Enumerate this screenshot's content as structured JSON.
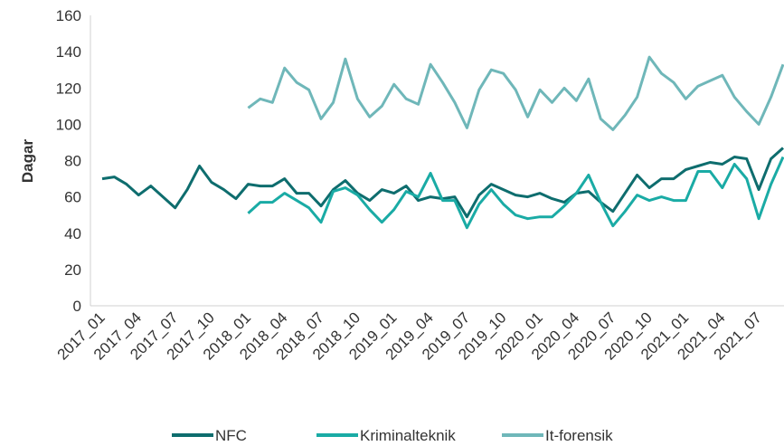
{
  "chart_data": {
    "type": "line",
    "y_label": "Dagar",
    "categories": [
      "2017_01",
      null,
      null,
      "2017_04",
      null,
      null,
      "2017_07",
      null,
      null,
      "2017_10",
      null,
      null,
      "2018_01",
      null,
      null,
      "2018_04",
      null,
      null,
      "2018_07",
      null,
      null,
      "2018_10",
      null,
      null,
      "2019_01",
      null,
      null,
      "2019_04",
      null,
      null,
      "2019_07",
      null,
      null,
      "2019_10",
      null,
      null,
      "2020_01",
      null,
      null,
      "2020_04",
      null,
      null,
      "2020_07",
      null,
      null,
      "2020_10",
      null,
      null,
      "2021_01",
      null,
      null,
      "2021_04",
      null,
      null,
      "2021_07",
      null,
      null
    ],
    "series": [
      {
        "name": "NFC",
        "color": "#0e6d6e",
        "values": [
          70,
          71,
          67,
          61,
          66,
          60,
          54,
          64,
          77,
          68,
          64,
          59,
          67,
          66,
          66,
          70,
          62,
          62,
          55,
          64,
          69,
          62,
          58,
          64,
          62,
          66,
          58,
          60,
          59,
          60,
          49,
          61,
          67,
          64,
          61,
          60,
          62,
          59,
          57,
          62,
          63,
          57,
          52,
          62,
          72,
          65,
          70,
          70,
          75,
          77,
          79,
          78,
          82,
          81,
          64,
          81,
          87
        ]
      },
      {
        "name": "Kriminalteknik",
        "color": "#1aaba5",
        "values": [
          null,
          null,
          null,
          null,
          null,
          null,
          null,
          null,
          null,
          null,
          null,
          null,
          51,
          57,
          57,
          62,
          58,
          54,
          46,
          63,
          65,
          61,
          53,
          46,
          53,
          63,
          60,
          73,
          58,
          58,
          43,
          56,
          64,
          56,
          50,
          48,
          49,
          49,
          55,
          62,
          72,
          57,
          44,
          52,
          61,
          58,
          60,
          58,
          58,
          74,
          74,
          65,
          78,
          70,
          48,
          67,
          82
        ]
      },
      {
        "name": "It-forensik",
        "color": "#6fb7b9",
        "values": [
          null,
          null,
          null,
          null,
          null,
          null,
          null,
          null,
          null,
          null,
          null,
          null,
          109,
          114,
          112,
          131,
          123,
          119,
          103,
          112,
          136,
          114,
          104,
          110,
          122,
          114,
          111,
          133,
          123,
          112,
          98,
          119,
          130,
          128,
          119,
          104,
          119,
          112,
          120,
          113,
          125,
          103,
          97,
          105,
          115,
          137,
          128,
          123,
          114,
          121,
          124,
          127,
          115,
          107,
          100,
          115,
          133
        ]
      }
    ],
    "ylim": [
      0,
      160
    ],
    "yticks": [
      0,
      20,
      40,
      60,
      80,
      100,
      120,
      140,
      160
    ],
    "grid": false,
    "legend": "bottom"
  }
}
